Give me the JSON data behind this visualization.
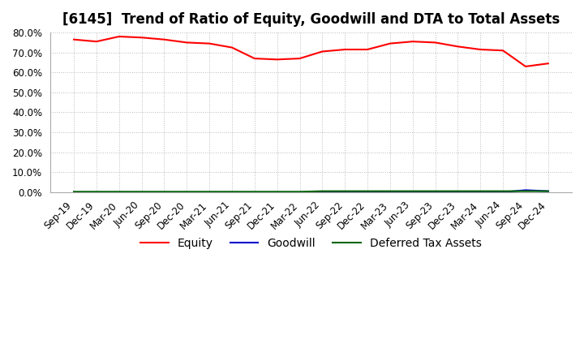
{
  "title": "[6145]  Trend of Ratio of Equity, Goodwill and DTA to Total Assets",
  "x_labels": [
    "Sep-19",
    "Dec-19",
    "Mar-20",
    "Jun-20",
    "Sep-20",
    "Dec-20",
    "Mar-21",
    "Jun-21",
    "Sep-21",
    "Dec-21",
    "Mar-22",
    "Jun-22",
    "Sep-22",
    "Dec-22",
    "Mar-23",
    "Jun-23",
    "Sep-23",
    "Dec-23",
    "Mar-24",
    "Jun-24",
    "Sep-24",
    "Dec-24"
  ],
  "equity": [
    76.5,
    75.5,
    78.0,
    77.5,
    76.5,
    75.0,
    74.5,
    72.5,
    67.0,
    66.5,
    67.0,
    70.5,
    71.5,
    71.5,
    74.5,
    75.5,
    75.0,
    73.0,
    71.5,
    71.0,
    63.0,
    64.5
  ],
  "goodwill": [
    0.0,
    0.0,
    0.0,
    0.0,
    0.0,
    0.0,
    0.0,
    0.0,
    0.0,
    0.0,
    0.0,
    0.0,
    0.0,
    0.0,
    0.0,
    0.0,
    0.0,
    0.0,
    0.0,
    0.0,
    1.0,
    0.5
  ],
  "dta": [
    0.2,
    0.2,
    0.2,
    0.2,
    0.2,
    0.2,
    0.2,
    0.2,
    0.2,
    0.2,
    0.2,
    0.5,
    0.5,
    0.5,
    0.5,
    0.5,
    0.5,
    0.5,
    0.5,
    0.5,
    0.5,
    0.5
  ],
  "equity_color": "#ff0000",
  "goodwill_color": "#0000cc",
  "dta_color": "#006400",
  "ylim_min": 0.0,
  "ylim_max": 80.0,
  "yticks": [
    0.0,
    10.0,
    20.0,
    30.0,
    40.0,
    50.0,
    60.0,
    70.0,
    80.0
  ],
  "background_color": "#ffffff",
  "plot_bg_color": "#ffffff",
  "grid_color": "#bbbbbb",
  "title_fontsize": 12,
  "axis_fontsize": 8.5,
  "legend_labels": [
    "Equity",
    "Goodwill",
    "Deferred Tax Assets"
  ]
}
